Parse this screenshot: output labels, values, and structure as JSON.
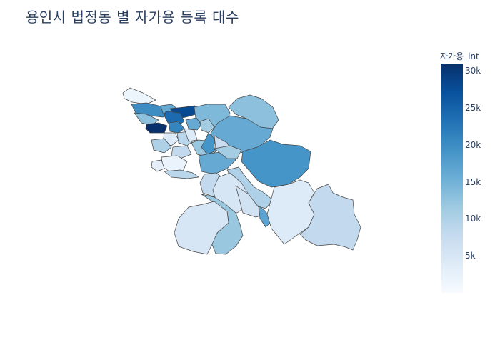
{
  "title": "용인시 법정동 별 자가용 등록 대수",
  "colorbar": {
    "title": "자가용_int",
    "ticks": [
      "5k",
      "10k",
      "15k",
      "20k",
      "25k",
      "30k"
    ],
    "tick_values": [
      5000,
      10000,
      15000,
      20000,
      25000,
      30000
    ],
    "range": [
      0,
      31000
    ],
    "colorscale": [
      "#f7fbff",
      "#deebf7",
      "#c6dbef",
      "#9ecae1",
      "#6baed6",
      "#4292c6",
      "#2171b5",
      "#08519c",
      "#08306b"
    ]
  },
  "chart_data": {
    "type": "choropleth",
    "title": "용인시 법정동 별 자가용 등록 대수",
    "color_variable": "자가용_int",
    "color_range": [
      0,
      31000
    ],
    "region_values": [
      1500,
      20000,
      16000,
      28000,
      24000,
      13000,
      14000,
      13000,
      16000,
      31000,
      21000,
      16000,
      11000,
      4000,
      9000,
      10000,
      8000,
      12000,
      4000,
      19000,
      7000,
      16000,
      11000,
      19000,
      10000,
      2000,
      3000,
      9000,
      8000,
      5000,
      6000,
      17000,
      12000,
      5000,
      4000,
      8000,
      9000,
      2000,
      1000,
      11000,
      13000,
      12000,
      7000,
      7000
    ]
  }
}
